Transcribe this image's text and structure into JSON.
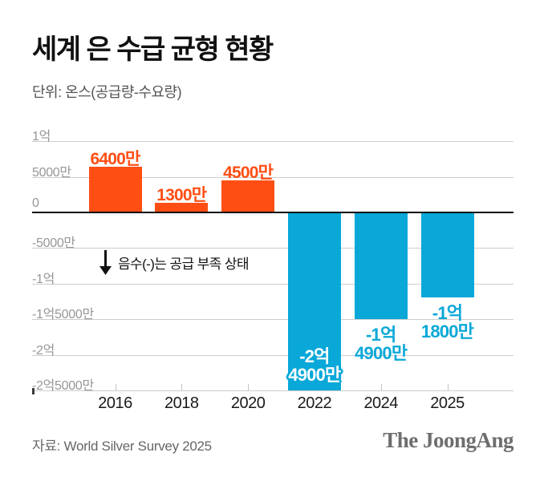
{
  "header": {
    "title": "세계 은 수급 균형 현황",
    "unit_label": "단위: 온스(공급량-수요량)"
  },
  "chart_data": {
    "type": "bar",
    "title": "세계 은 수급 균형 현황",
    "unit": "온스 (공급량-수요량)",
    "categories": [
      "2016",
      "2018",
      "2020",
      "2022",
      "2024",
      "2025"
    ],
    "values_in_million_oz": [
      64,
      13,
      45,
      -249,
      -149,
      -118
    ],
    "points": [
      {
        "category": "2016",
        "value_million_oz": 64,
        "label_lines": [
          "6400만"
        ],
        "label_position": "above"
      },
      {
        "category": "2018",
        "value_million_oz": 13,
        "label_lines": [
          "1300만"
        ],
        "label_position": "above"
      },
      {
        "category": "2020",
        "value_million_oz": 45,
        "label_lines": [
          "4500만"
        ],
        "label_position": "above"
      },
      {
        "category": "2022",
        "value_million_oz": -249,
        "label_lines": [
          "-2억",
          "4900만"
        ],
        "label_position": "inside-bottom"
      },
      {
        "category": "2024",
        "value_million_oz": -149,
        "label_lines": [
          "-1억",
          "4900만"
        ],
        "label_position": "below"
      },
      {
        "category": "2025",
        "value_million_oz": -118,
        "label_lines": [
          "-1억",
          "1800만"
        ],
        "label_position": "below"
      }
    ],
    "y_axis": {
      "range_million_oz": [
        -250,
        100
      ],
      "grid": true,
      "ticks": [
        {
          "value_million_oz": 100,
          "label": "1억"
        },
        {
          "value_million_oz": 50,
          "label": "5000만"
        },
        {
          "value_million_oz": 0,
          "label": "0"
        },
        {
          "value_million_oz": -50,
          "label": "-5000만"
        },
        {
          "value_million_oz": -100,
          "label": "-1억"
        },
        {
          "value_million_oz": -150,
          "label": "-1억5000만"
        },
        {
          "value_million_oz": -200,
          "label": "-2억"
        },
        {
          "value_million_oz": -250,
          "label": "-2억5000만"
        }
      ]
    },
    "colors": {
      "surplus_bar": "#ff4e14",
      "deficit_bar": "#09a8d8",
      "inside_label_text": "#ffffff"
    },
    "annotation": {
      "arrow_icon": "↓",
      "text": "음수(-)는 공급 부족 상태"
    },
    "legend": "none"
  },
  "footer": {
    "source": "자료: World Silver Survey 2025",
    "logo": "The JoongAng"
  }
}
